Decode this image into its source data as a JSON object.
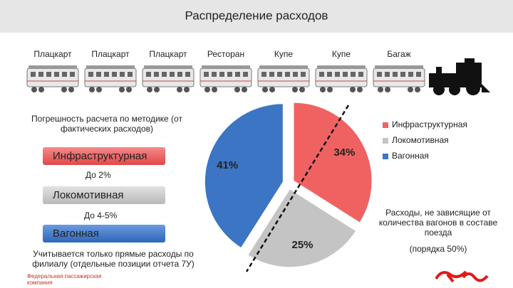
{
  "chart_data": {
    "type": "pie",
    "title": "Распределение расходов",
    "categories": [
      "Инфраструктурная",
      "Локомотивная",
      "Вагонная"
    ],
    "values": [
      34,
      25,
      41
    ],
    "value_labels": [
      "34%",
      "25%",
      "41%"
    ],
    "colors": [
      "#f06262",
      "#c4c4c4",
      "#3b75c4"
    ],
    "legend": "right"
  },
  "wagons": [
    "Плацкарт",
    "Плацкарт",
    "Плацкарт",
    "Ресторан",
    "Купе",
    "Купе",
    "Багаж"
  ],
  "left_panel": {
    "heading": "Погрешность расчета по методике (от фактических расходов)",
    "items": [
      {
        "label": "Инфраструктурная",
        "note": "До 2%"
      },
      {
        "label": "Локомотивная",
        "note": "До 4-5%"
      },
      {
        "label": "Вагонная",
        "note": "Учитывается только прямые расходы по филиалу (отдельные позиции отчета 7У)"
      }
    ]
  },
  "right_note": "Расходы, не зависящие от количества вагонов в составе поезда",
  "right_share": "(порядка 50%)",
  "footer": {
    "company": "Федеральная пассажирская компания"
  }
}
